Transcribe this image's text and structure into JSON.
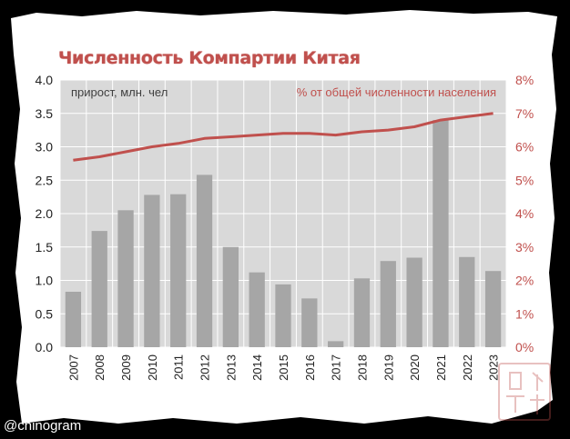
{
  "title": "Численность Компартии Китая",
  "handle": "@chinogram",
  "watermark_text": "电报中文",
  "colors": {
    "bar": "#a6a6a6",
    "line": "#c0504d",
    "plot_bg": "#d9d9d9",
    "gridline": "#ffffff",
    "paper": "#ffffff",
    "background": "#000000",
    "title": "#c0504d"
  },
  "chart_data": {
    "type": "bar",
    "categories": [
      "2007",
      "2008",
      "2009",
      "2010",
      "2011",
      "2012",
      "2013",
      "2014",
      "2015",
      "2016",
      "2017",
      "2018",
      "2019",
      "2020",
      "2021",
      "2022",
      "2023"
    ],
    "series": [
      {
        "name": "прирост, млн. чел",
        "type": "bar",
        "axis": "left",
        "values": [
          0.83,
          1.74,
          2.05,
          2.28,
          2.29,
          2.58,
          1.5,
          1.12,
          0.94,
          0.73,
          0.09,
          1.03,
          1.29,
          1.34,
          3.4,
          1.35,
          1.14
        ]
      },
      {
        "name": "% от общей численности населения",
        "type": "line",
        "axis": "right",
        "values": [
          5.6,
          5.7,
          5.85,
          6.0,
          6.1,
          6.25,
          6.3,
          6.35,
          6.4,
          6.4,
          6.35,
          6.45,
          6.5,
          6.6,
          6.8,
          6.9,
          7.0
        ]
      }
    ],
    "y_left": {
      "min": 0,
      "max": 4.0,
      "ticks": [
        "0.0",
        "0.5",
        "1.0",
        "1.5",
        "2.0",
        "2.5",
        "3.0",
        "3.5",
        "4.0"
      ]
    },
    "y_right": {
      "min": 0,
      "max": 8,
      "ticks": [
        "0%",
        "1%",
        "2%",
        "3%",
        "4%",
        "5%",
        "6%",
        "7%",
        "8%"
      ]
    },
    "left_series_label": "прирост, млн. чел",
    "right_series_label": "% от общей численности населения",
    "grid": true,
    "x_tick_rotation": "vertical"
  }
}
